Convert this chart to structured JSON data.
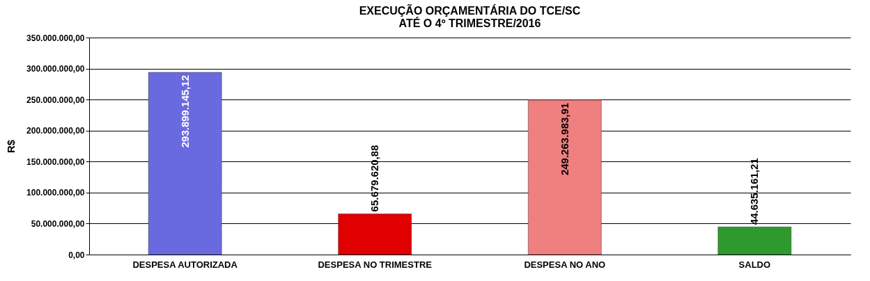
{
  "chart_data": {
    "type": "bar",
    "title": "EXECUÇÃO ORÇAMENTÁRIA  DO TCE/SC\nATÉ O 4º TRIMESTRE/2016",
    "ylabel": "R$",
    "categories": [
      "DESPESA AUTORIZADA",
      "DESPESA NO TRIMESTRE",
      "DESPESA NO ANO",
      "SALDO"
    ],
    "values": [
      293899145.12,
      65679620.88,
      249263983.91,
      44635161.21
    ],
    "colors": [
      "#6a6ae0",
      "#e00000",
      "#f08080",
      "#2e9a2e"
    ],
    "value_labels": [
      "293.899.145,12",
      "65.679.620,88",
      "249.263.983,91",
      "44.635.161,21"
    ],
    "ylim": [
      0,
      350000000
    ],
    "yticks": [
      {
        "value": 0,
        "label": "0,00"
      },
      {
        "value": 50000000,
        "label": "50.000.000,00"
      },
      {
        "value": 100000000,
        "label": "100.000.000,00"
      },
      {
        "value": 150000000,
        "label": "150.000.000,00"
      },
      {
        "value": 200000000,
        "label": "200.000.000,00"
      },
      {
        "value": 250000000,
        "label": "250.000.000,00"
      },
      {
        "value": 300000000,
        "label": "300.000.000,00"
      },
      {
        "value": 350000000,
        "label": "350.000.000,00"
      }
    ],
    "grid": "y",
    "legend": false
  }
}
